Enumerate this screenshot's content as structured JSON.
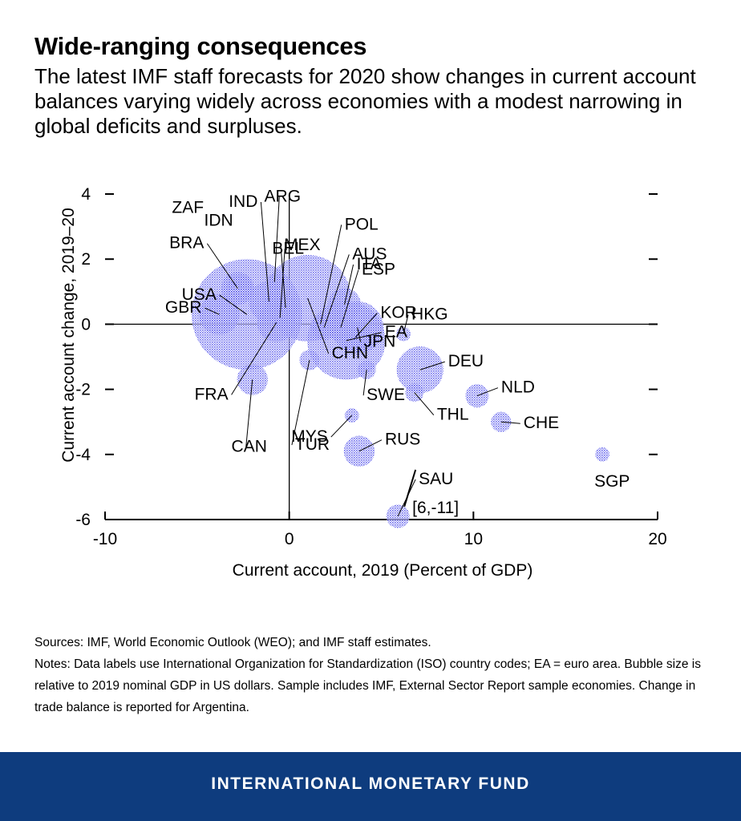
{
  "header": {
    "title": "Wide-ranging consequences",
    "subtitle": "The latest IMF staff forecasts for 2020 show changes in current account balances varying widely across economies with a modest narrowing in global deficits and surpluses."
  },
  "chart_data": {
    "type": "scatter",
    "xlabel": "Current account, 2019 (Percent of GDP)",
    "ylabel": "Current account change, 2019–20",
    "xlim": [
      -10,
      20
    ],
    "ylim": [
      -6,
      4
    ],
    "xticks": [
      "-10",
      "0",
      "10",
      "20"
    ],
    "yticks": [
      "4",
      "2",
      "0",
      "-2",
      "-4",
      "-6"
    ],
    "grid": false,
    "bubble_color": "#3a3ae8",
    "points": [
      {
        "label": "USA",
        "x": -2.3,
        "y": 0.3,
        "size": 9
      },
      {
        "label": "GBR",
        "x": -3.8,
        "y": 0.3,
        "size": 1.2
      },
      {
        "label": "BRA",
        "x": -2.8,
        "y": 1.1,
        "size": 0.8
      },
      {
        "label": "ZAF",
        "x": -2.9,
        "y": 1.2,
        "size": 0.2
      },
      {
        "label": "IDN",
        "x": -2.7,
        "y": 1.1,
        "size": 0.5
      },
      {
        "label": "IND",
        "x": -1.1,
        "y": 0.7,
        "size": 1.2
      },
      {
        "label": "ARG",
        "x": -0.8,
        "y": 1.3,
        "size": 0.2
      },
      {
        "label": "BEL",
        "x": -0.5,
        "y": 0.2,
        "size": 0.25
      },
      {
        "label": "FRA",
        "x": -0.7,
        "y": 0.05,
        "size": 1.1
      },
      {
        "label": "CAN",
        "x": -2.0,
        "y": -1.7,
        "size": 0.7
      },
      {
        "label": "MEX",
        "x": -0.2,
        "y": 0.5,
        "size": 0.5
      },
      {
        "label": "CHN",
        "x": 1.0,
        "y": 0.8,
        "size": 5.5
      },
      {
        "label": "TUR",
        "x": 1.1,
        "y": -1.1,
        "size": 0.3
      },
      {
        "label": "POL",
        "x": 1.7,
        "y": 0.0,
        "size": 0.25
      },
      {
        "label": "AUS",
        "x": 1.9,
        "y": -0.1,
        "size": 0.5
      },
      {
        "label": "ESP",
        "x": 2.8,
        "y": -0.1,
        "size": 0.6
      },
      {
        "label": "ITA",
        "x": 3.0,
        "y": 0.6,
        "size": 0.8
      },
      {
        "label": "KOR",
        "x": 3.6,
        "y": -0.4,
        "size": 0.7
      },
      {
        "label": "EA",
        "x": 3.1,
        "y": -0.5,
        "size": 4.5
      },
      {
        "label": "HKG",
        "x": 6.2,
        "y": -0.3,
        "size": 0.15
      },
      {
        "label": "JPN",
        "x": 3.7,
        "y": -0.1,
        "size": 2.0
      },
      {
        "label": "SWE",
        "x": 4.2,
        "y": -1.4,
        "size": 0.25
      },
      {
        "label": "MYS",
        "x": 3.4,
        "y": -2.8,
        "size": 0.15
      },
      {
        "label": "RUS",
        "x": 3.8,
        "y": -3.9,
        "size": 0.7
      },
      {
        "label": "DEU",
        "x": 7.1,
        "y": -1.4,
        "size": 1.6
      },
      {
        "label": "THL",
        "x": 6.8,
        "y": -2.1,
        "size": 0.25
      },
      {
        "label": "NLD",
        "x": 10.2,
        "y": -2.2,
        "size": 0.4
      },
      {
        "label": "CHE",
        "x": 11.5,
        "y": -3.0,
        "size": 0.3
      },
      {
        "label": "SGP",
        "x": 17.0,
        "y": -4.0,
        "size": 0.15
      },
      {
        "label": "SAU",
        "x": 5.9,
        "y": -5.9,
        "size": 0.4
      }
    ],
    "annotations": [
      {
        "text": "[6,-11]"
      }
    ]
  },
  "notes": {
    "sources": "Sources: IMF, World Economic Outlook (WEO); and IMF staff estimates.",
    "notes": "Notes: Data labels use International Organization for Standardization (ISO) country codes; EA = euro area. Bubble size is relative to 2019 nominal GDP in US dollars. Sample includes IMF, External Sector Report sample economies. Change in trade balance is reported for Argentina."
  },
  "footer": {
    "org": "INTERNATIONAL MONETARY FUND"
  }
}
